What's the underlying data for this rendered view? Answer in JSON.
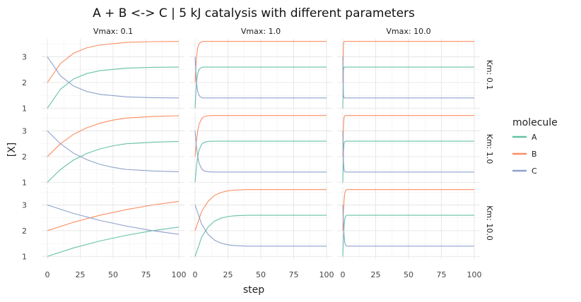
{
  "chart_data": {
    "type": "line",
    "title": "A + B <-> C | 5 kJ catalysis with different parameters",
    "xlabel": "step",
    "ylabel": "[X]",
    "xlim": [
      0,
      100
    ],
    "ylim": [
      0.9,
      3.7
    ],
    "x_ticks": [
      "0",
      "25",
      "50",
      "75",
      "100"
    ],
    "y_ticks": [
      "1",
      "2",
      "3"
    ],
    "grid": true,
    "legend": {
      "title": "molecule",
      "placement": "right",
      "entries": [
        "A",
        "B",
        "C"
      ]
    },
    "colors": {
      "A": "#66c2a5",
      "B": "#fc8d62",
      "C": "#8da0cb"
    },
    "col_labels": [
      "Vmax: 0.1",
      "Vmax: 1.0",
      "Vmax: 10.0"
    ],
    "row_labels": [
      "Km: 0.1",
      "Km: 1.0",
      "Km: 10.0"
    ],
    "initial": {
      "A": 1.0,
      "B": 2.0,
      "C": 3.0
    },
    "equilibrium": {
      "A": 2.6,
      "B": 3.6,
      "C": 1.4
    },
    "panels": [
      {
        "vmax": "0.1",
        "km": "0.1",
        "series": [
          {
            "name": "A",
            "x": [
              0,
              10,
              20,
              30,
              40,
              60,
              80,
              100
            ],
            "y": [
              1.0,
              1.74,
              2.14,
              2.35,
              2.46,
              2.56,
              2.59,
              2.6
            ]
          },
          {
            "name": "B",
            "x": [
              0,
              10,
              20,
              30,
              40,
              60,
              80,
              100
            ],
            "y": [
              2.0,
              2.74,
              3.14,
              3.35,
              3.46,
              3.56,
              3.59,
              3.6
            ]
          },
          {
            "name": "C",
            "x": [
              0,
              10,
              20,
              30,
              40,
              60,
              80,
              100
            ],
            "y": [
              3.0,
              2.26,
              1.86,
              1.65,
              1.54,
              1.44,
              1.41,
              1.4
            ]
          }
        ]
      },
      {
        "vmax": "1.0",
        "km": "0.1",
        "series": [
          {
            "name": "A",
            "x": [
              0,
              1,
              2,
              3,
              4,
              6,
              10,
              100
            ],
            "y": [
              1.0,
              1.95,
              2.35,
              2.5,
              2.56,
              2.6,
              2.6,
              2.6
            ]
          },
          {
            "name": "B",
            "x": [
              0,
              1,
              2,
              3,
              4,
              6,
              10,
              100
            ],
            "y": [
              2.0,
              2.95,
              3.35,
              3.5,
              3.56,
              3.6,
              3.6,
              3.6
            ]
          },
          {
            "name": "C",
            "x": [
              0,
              1,
              2,
              3,
              4,
              6,
              10,
              100
            ],
            "y": [
              3.0,
              2.05,
              1.65,
              1.5,
              1.44,
              1.4,
              1.4,
              1.4
            ]
          }
        ]
      },
      {
        "vmax": "10.0",
        "km": "0.1",
        "series": [
          {
            "name": "A",
            "x": [
              0,
              0.5,
              1,
              100
            ],
            "y": [
              1.0,
              2.5,
              2.6,
              2.6
            ]
          },
          {
            "name": "B",
            "x": [
              0,
              0.5,
              1,
              100
            ],
            "y": [
              2.0,
              3.5,
              3.6,
              3.6
            ]
          },
          {
            "name": "C",
            "x": [
              0,
              0.5,
              1,
              100
            ],
            "y": [
              3.0,
              1.5,
              1.4,
              1.4
            ]
          }
        ]
      },
      {
        "vmax": "0.1",
        "km": "1.0",
        "series": [
          {
            "name": "A",
            "x": [
              0,
              10,
              20,
              30,
              40,
              50,
              60,
              80,
              100
            ],
            "y": [
              1.0,
              1.5,
              1.87,
              2.12,
              2.3,
              2.42,
              2.5,
              2.56,
              2.59
            ]
          },
          {
            "name": "B",
            "x": [
              0,
              10,
              20,
              30,
              40,
              50,
              60,
              80,
              100
            ],
            "y": [
              2.0,
              2.5,
              2.87,
              3.12,
              3.3,
              3.42,
              3.5,
              3.56,
              3.59
            ]
          },
          {
            "name": "C",
            "x": [
              0,
              10,
              20,
              30,
              40,
              50,
              60,
              80,
              100
            ],
            "y": [
              3.0,
              2.5,
              2.13,
              1.88,
              1.7,
              1.58,
              1.5,
              1.44,
              1.41
            ]
          }
        ]
      },
      {
        "vmax": "1.0",
        "km": "1.0",
        "series": [
          {
            "name": "A",
            "x": [
              0,
              1,
              2,
              3,
              5,
              7,
              10,
              15,
              100
            ],
            "y": [
              1.0,
              1.6,
              2.0,
              2.25,
              2.48,
              2.56,
              2.59,
              2.6,
              2.6
            ]
          },
          {
            "name": "B",
            "x": [
              0,
              1,
              2,
              3,
              5,
              7,
              10,
              15,
              100
            ],
            "y": [
              2.0,
              2.6,
              3.0,
              3.25,
              3.48,
              3.56,
              3.59,
              3.6,
              3.6
            ]
          },
          {
            "name": "C",
            "x": [
              0,
              1,
              2,
              3,
              5,
              7,
              10,
              15,
              100
            ],
            "y": [
              3.0,
              2.4,
              2.0,
              1.75,
              1.52,
              1.44,
              1.41,
              1.4,
              1.4
            ]
          }
        ]
      },
      {
        "vmax": "10.0",
        "km": "1.0",
        "series": [
          {
            "name": "A",
            "x": [
              0,
              0.5,
              1,
              2,
              100
            ],
            "y": [
              1.0,
              2.2,
              2.55,
              2.6,
              2.6
            ]
          },
          {
            "name": "B",
            "x": [
              0,
              0.5,
              1,
              2,
              100
            ],
            "y": [
              2.0,
              3.2,
              3.55,
              3.6,
              3.6
            ]
          },
          {
            "name": "C",
            "x": [
              0,
              0.5,
              1,
              2,
              100
            ],
            "y": [
              3.0,
              1.8,
              1.45,
              1.4,
              1.4
            ]
          }
        ]
      },
      {
        "vmax": "0.1",
        "km": "10.0",
        "series": [
          {
            "name": "A",
            "x": [
              0,
              20,
              40,
              60,
              80,
              100
            ],
            "y": [
              1.0,
              1.33,
              1.6,
              1.82,
              2.0,
              2.14
            ]
          },
          {
            "name": "B",
            "x": [
              0,
              20,
              40,
              60,
              80,
              100
            ],
            "y": [
              2.0,
              2.33,
              2.6,
              2.82,
              3.0,
              3.14
            ]
          },
          {
            "name": "C",
            "x": [
              0,
              20,
              40,
              60,
              80,
              100
            ],
            "y": [
              3.0,
              2.67,
              2.4,
              2.18,
              2.0,
              1.86
            ]
          }
        ]
      },
      {
        "vmax": "1.0",
        "km": "10.0",
        "series": [
          {
            "name": "A",
            "x": [
              0,
              5,
              10,
              15,
              20,
              25,
              30,
              40,
              50,
              100
            ],
            "y": [
              1.0,
              1.75,
              2.15,
              2.38,
              2.49,
              2.55,
              2.58,
              2.6,
              2.6,
              2.6
            ]
          },
          {
            "name": "B",
            "x": [
              0,
              5,
              10,
              15,
              20,
              25,
              30,
              40,
              50,
              100
            ],
            "y": [
              2.0,
              2.75,
              3.15,
              3.38,
              3.49,
              3.55,
              3.58,
              3.6,
              3.6,
              3.6
            ]
          },
          {
            "name": "C",
            "x": [
              0,
              5,
              10,
              15,
              20,
              25,
              30,
              40,
              50,
              100
            ],
            "y": [
              3.0,
              2.25,
              1.85,
              1.62,
              1.51,
              1.45,
              1.42,
              1.4,
              1.4,
              1.4
            ]
          }
        ]
      },
      {
        "vmax": "10.0",
        "km": "10.0",
        "series": [
          {
            "name": "A",
            "x": [
              0,
              0.5,
              1,
              1.5,
              2,
              3,
              100
            ],
            "y": [
              1.0,
              1.75,
              2.2,
              2.45,
              2.55,
              2.6,
              2.6
            ]
          },
          {
            "name": "B",
            "x": [
              0,
              0.5,
              1,
              1.5,
              2,
              3,
              100
            ],
            "y": [
              2.0,
              2.75,
              3.2,
              3.45,
              3.55,
              3.6,
              3.6
            ]
          },
          {
            "name": "C",
            "x": [
              0,
              0.5,
              1,
              1.5,
              2,
              3,
              100
            ],
            "y": [
              3.0,
              2.25,
              1.8,
              1.55,
              1.45,
              1.4,
              1.4
            ]
          }
        ]
      }
    ]
  }
}
